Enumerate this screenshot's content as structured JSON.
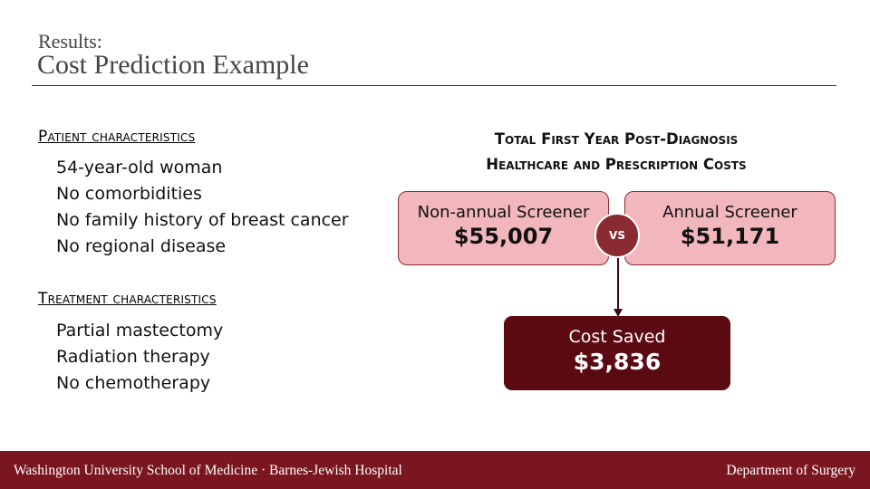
{
  "title": {
    "small": "Results:",
    "main": "Cost Prediction Example"
  },
  "patient": {
    "heading": "Patient characteristics",
    "items": [
      "54-year-old woman",
      "No comorbidities",
      "No family history of breast cancer",
      "No regional disease"
    ]
  },
  "treatment": {
    "heading": "Treatment characteristics",
    "items": [
      "Partial mastectomy",
      "Radiation therapy",
      "No chemotherapy"
    ]
  },
  "costs": {
    "heading_line1": "Total First Year Post-Diagnosis",
    "heading_line2": "Healthcare and Prescription Costs",
    "non_annual": {
      "label": "Non-annual Screener",
      "value": "$55,007"
    },
    "annual": {
      "label": "Annual Screener",
      "value": "$51,171"
    },
    "vs": "VS",
    "saved": {
      "label": "Cost Saved",
      "value": "$3,836"
    }
  },
  "footer": {
    "left": "Washington University School of Medicine · Barnes-Jewish Hospital",
    "right": "Department of Surgery"
  },
  "colors": {
    "accent": "#7a1620",
    "box_fill": "#f2b6bd",
    "saved_fill": "#5c0a12"
  }
}
